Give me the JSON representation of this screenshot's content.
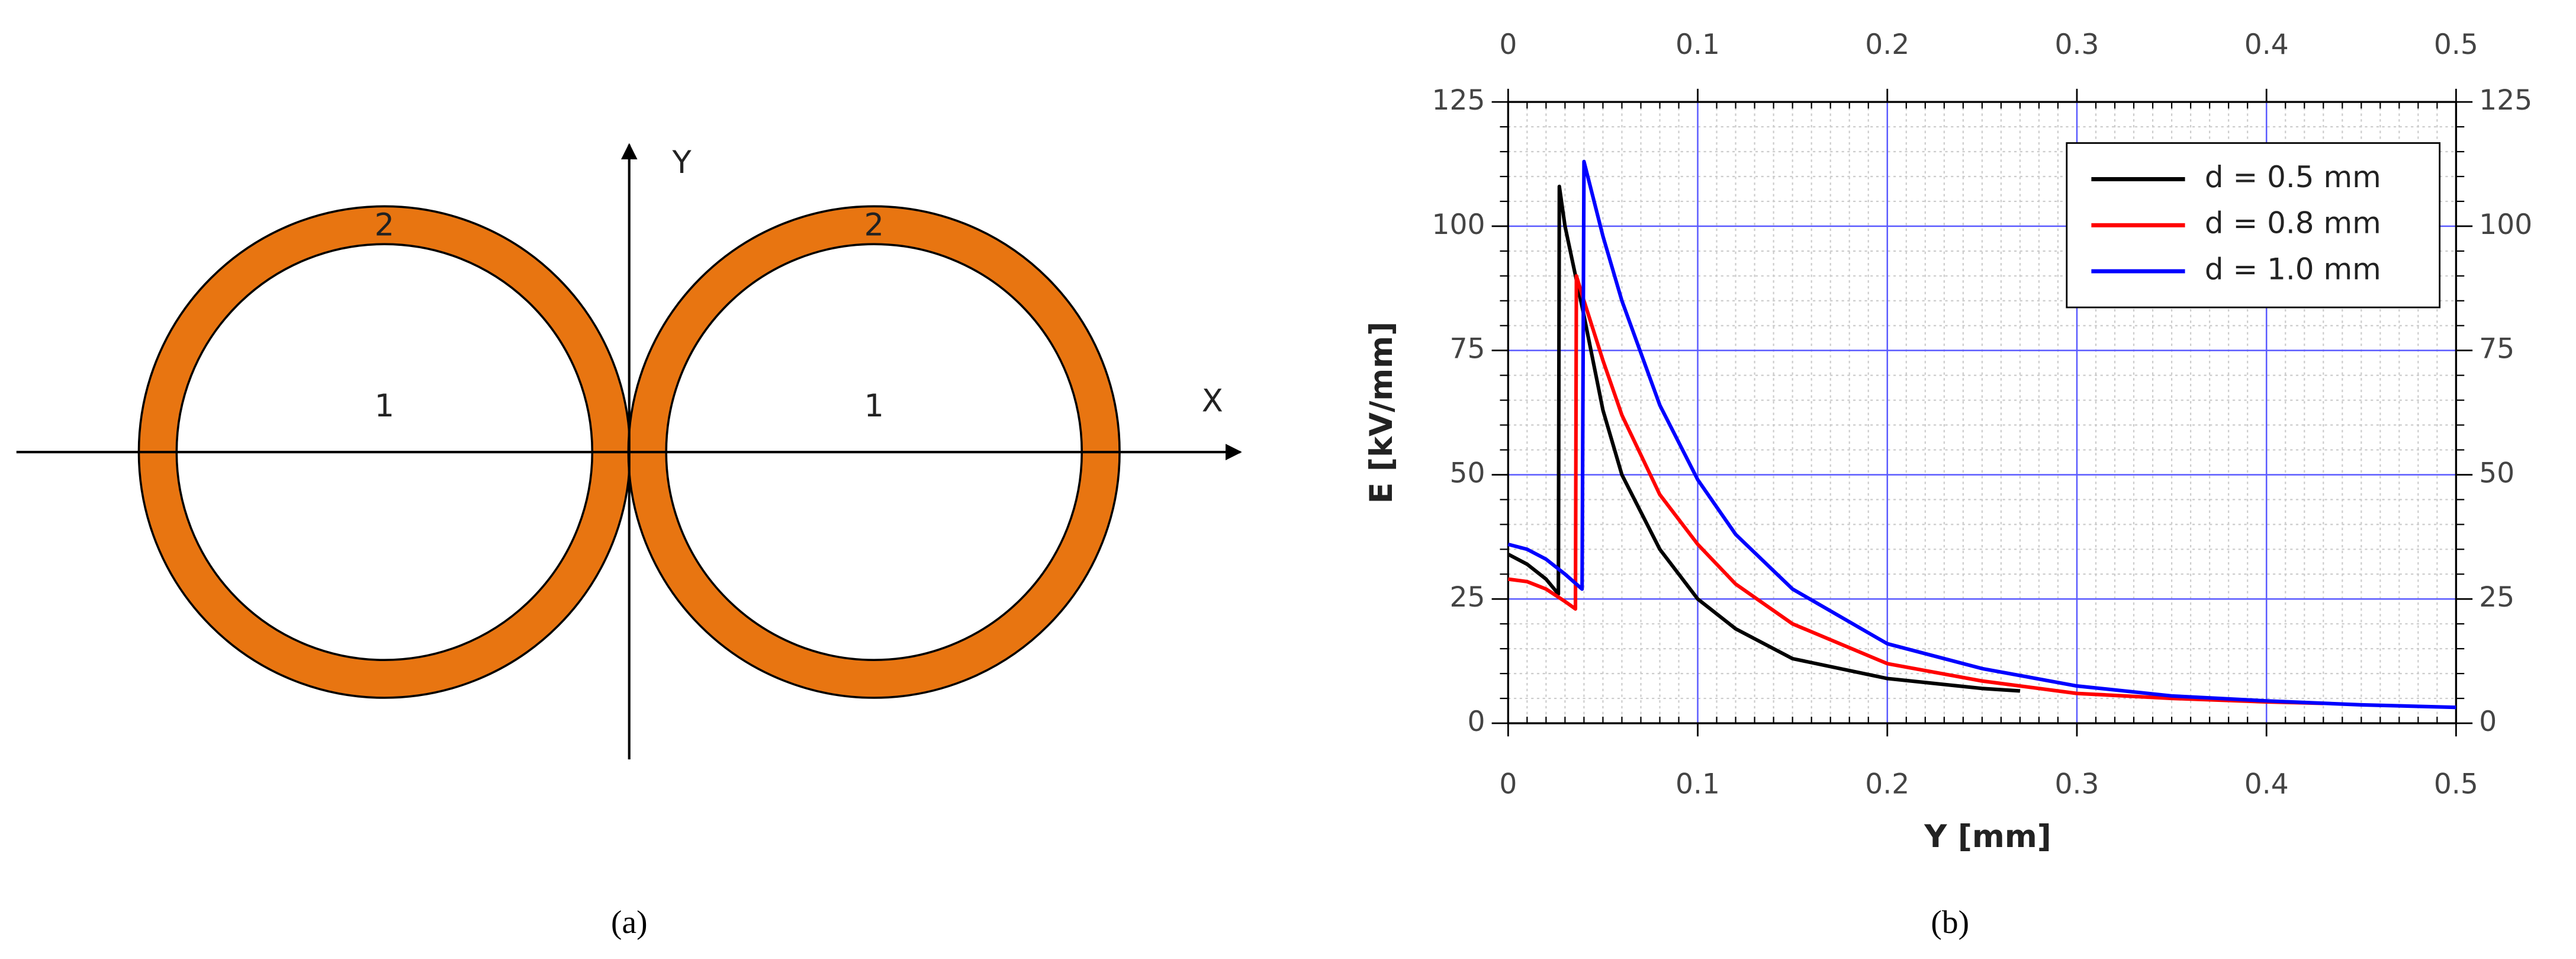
{
  "diagram": {
    "axis_x": "X",
    "axis_y": "Y",
    "rings": [
      {
        "inner": "1",
        "shell": "2"
      },
      {
        "inner": "1",
        "shell": "2"
      }
    ]
  },
  "captions": [
    "(a)",
    "(b)"
  ],
  "chart_data": {
    "type": "line",
    "xlabel": "Y [mm]",
    "ylabel": "E [kV/mm]",
    "xlim": [
      0,
      0.5
    ],
    "ylim": [
      0,
      125
    ],
    "xticks": [
      0,
      0.1,
      0.2,
      0.3,
      0.4,
      0.5
    ],
    "yticks": [
      0,
      25,
      50,
      75,
      100,
      125
    ],
    "grid": true,
    "legend": "upper right",
    "mirror_axes": true,
    "series": [
      {
        "name": "d = 0.5 mm",
        "color": "#000000",
        "x": [
          0,
          0.01,
          0.02,
          0.0265,
          0.027,
          0.03,
          0.04,
          0.05,
          0.06,
          0.08,
          0.1,
          0.12,
          0.15,
          0.2,
          0.25,
          0.27
        ],
        "values": [
          34,
          32,
          29,
          26,
          108,
          100,
          82,
          63,
          50,
          35,
          25,
          19,
          13,
          9,
          7,
          6.5
        ]
      },
      {
        "name": "d = 0.8 mm",
        "color": "#ff0000",
        "x": [
          0,
          0.01,
          0.02,
          0.03,
          0.0355,
          0.036,
          0.04,
          0.05,
          0.06,
          0.08,
          0.1,
          0.12,
          0.15,
          0.2,
          0.25,
          0.3,
          0.35,
          0.4,
          0.43
        ],
        "values": [
          29,
          28.5,
          27,
          24.5,
          23,
          90,
          85,
          73,
          62,
          46,
          36,
          28,
          20,
          12,
          8.5,
          6,
          5,
          4.3,
          4
        ]
      },
      {
        "name": "d = 1.0 mm",
        "color": "#0000ff",
        "x": [
          0,
          0.01,
          0.02,
          0.03,
          0.039,
          0.04,
          0.05,
          0.06,
          0.08,
          0.1,
          0.12,
          0.15,
          0.2,
          0.25,
          0.3,
          0.35,
          0.4,
          0.45,
          0.5
        ],
        "values": [
          36,
          35,
          33,
          30,
          27,
          113,
          98,
          85,
          64,
          49,
          38,
          27,
          16,
          11,
          7.5,
          5.5,
          4.5,
          3.7,
          3.2
        ]
      }
    ]
  }
}
